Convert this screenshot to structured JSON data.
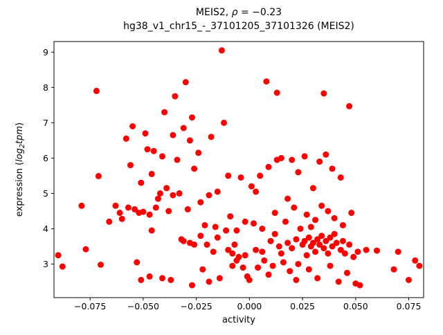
{
  "figure": {
    "title1": {
      "prefix": "MEIS2, ",
      "rho": "ρ",
      "suffix": " = −0.23"
    },
    "title2": "hg38_v1_chr15_-_37101205_37101326 (MEIS2)",
    "xlabel": "activity",
    "ylabel": {
      "prefix": "expression (",
      "log": "log",
      "sub": "2",
      "var": "tpm",
      "suffix": ")"
    }
  },
  "chart_data": {
    "type": "scatter",
    "title": "MEIS2, ρ = −0.23",
    "subtitle": "hg38_v1_chr15_-_37101205_37101326 (MEIS2)",
    "xlabel": "activity",
    "ylabel": "expression (log2 tpm)",
    "legend": null,
    "grid": false,
    "marker_color": "#ff0000",
    "marker_radius": 4.5,
    "xlim": [
      -0.092,
      0.082
    ],
    "ylim": [
      2.05,
      9.3
    ],
    "xticks": [
      -0.075,
      -0.05,
      -0.025,
      0.0,
      0.025,
      0.05,
      0.075
    ],
    "xtick_labels": [
      "−0.075",
      "−0.050",
      "−0.025",
      "0.000",
      "0.025",
      "0.050",
      "0.075"
    ],
    "yticks": [
      3,
      4,
      5,
      6,
      7,
      8,
      9
    ],
    "ytick_labels": [
      "3",
      "4",
      "5",
      "6",
      "7",
      "8",
      "9"
    ],
    "points": [
      [
        -0.09,
        3.25
      ],
      [
        -0.088,
        2.93
      ],
      [
        -0.079,
        4.65
      ],
      [
        -0.077,
        3.42
      ],
      [
        -0.072,
        7.9
      ],
      [
        -0.071,
        5.49
      ],
      [
        -0.07,
        2.98
      ],
      [
        -0.066,
        4.2
      ],
      [
        -0.063,
        4.65
      ],
      [
        -0.061,
        4.45
      ],
      [
        -0.06,
        4.28
      ],
      [
        -0.058,
        6.55
      ],
      [
        -0.057,
        4.6
      ],
      [
        -0.056,
        5.8
      ],
      [
        -0.055,
        6.9
      ],
      [
        -0.054,
        4.55
      ],
      [
        -0.053,
        3.05
      ],
      [
        -0.052,
        4.45
      ],
      [
        -0.051,
        5.3
      ],
      [
        -0.051,
        2.55
      ],
      [
        -0.05,
        4.48
      ],
      [
        -0.049,
        6.7
      ],
      [
        -0.048,
        6.25
      ],
      [
        -0.047,
        4.4
      ],
      [
        -0.047,
        2.65
      ],
      [
        -0.046,
        5.55
      ],
      [
        -0.046,
        3.95
      ],
      [
        -0.045,
        6.2
      ],
      [
        -0.044,
        4.6
      ],
      [
        -0.043,
        4.85
      ],
      [
        -0.042,
        5.0
      ],
      [
        -0.041,
        6.05
      ],
      [
        -0.041,
        2.6
      ],
      [
        -0.04,
        7.3
      ],
      [
        -0.039,
        5.15
      ],
      [
        -0.038,
        4.5
      ],
      [
        -0.037,
        2.55
      ],
      [
        -0.036,
        6.65
      ],
      [
        -0.036,
        4.95
      ],
      [
        -0.035,
        7.75
      ],
      [
        -0.034,
        5.95
      ],
      [
        -0.033,
        5.0
      ],
      [
        -0.032,
        3.7
      ],
      [
        -0.031,
        6.85
      ],
      [
        -0.031,
        3.65
      ],
      [
        -0.03,
        8.15
      ],
      [
        -0.029,
        4.55
      ],
      [
        -0.028,
        6.5
      ],
      [
        -0.028,
        3.6
      ],
      [
        -0.027,
        7.15
      ],
      [
        -0.027,
        2.4
      ],
      [
        -0.026,
        5.7
      ],
      [
        -0.026,
        3.55
      ],
      [
        -0.024,
        6.15
      ],
      [
        -0.023,
        4.75
      ],
      [
        -0.023,
        3.8
      ],
      [
        -0.022,
        2.85
      ],
      [
        -0.021,
        4.1
      ],
      [
        -0.02,
        3.55
      ],
      [
        -0.019,
        4.95
      ],
      [
        -0.019,
        2.5
      ],
      [
        -0.018,
        6.6
      ],
      [
        -0.017,
        3.35
      ],
      [
        -0.016,
        4.05
      ],
      [
        -0.015,
        5.05
      ],
      [
        -0.015,
        3.75
      ],
      [
        -0.014,
        2.6
      ],
      [
        -0.013,
        9.05
      ],
      [
        -0.012,
        7.0
      ],
      [
        -0.011,
        3.95
      ],
      [
        -0.01,
        5.5
      ],
      [
        -0.01,
        3.4
      ],
      [
        -0.009,
        4.35
      ],
      [
        -0.008,
        3.3
      ],
      [
        -0.008,
        2.95
      ],
      [
        -0.007,
        3.55
      ],
      [
        -0.006,
        3.95
      ],
      [
        -0.006,
        3.1
      ],
      [
        -0.005,
        3.2
      ],
      [
        -0.004,
        5.45
      ],
      [
        -0.003,
        2.9
      ],
      [
        -0.002,
        4.2
      ],
      [
        -0.002,
        3.25
      ],
      [
        -0.001,
        2.65
      ],
      [
        0.0,
        2.55
      ],
      [
        0.001,
        5.2
      ],
      [
        0.002,
        4.15
      ],
      [
        0.003,
        5.05
      ],
      [
        0.003,
        3.4
      ],
      [
        0.004,
        2.9
      ],
      [
        0.005,
        5.5
      ],
      [
        0.006,
        4.0
      ],
      [
        0.006,
        3.35
      ],
      [
        0.007,
        3.1
      ],
      [
        0.008,
        8.17
      ],
      [
        0.009,
        5.75
      ],
      [
        0.009,
        2.7
      ],
      [
        0.01,
        3.65
      ],
      [
        0.011,
        2.95
      ],
      [
        0.012,
        4.45
      ],
      [
        0.012,
        3.85
      ],
      [
        0.013,
        7.85
      ],
      [
        0.013,
        5.95
      ],
      [
        0.014,
        3.5
      ],
      [
        0.015,
        6.0
      ],
      [
        0.015,
        3.3
      ],
      [
        0.016,
        3.05
      ],
      [
        0.017,
        4.2
      ],
      [
        0.018,
        4.85
      ],
      [
        0.018,
        3.6
      ],
      [
        0.019,
        2.8
      ],
      [
        0.02,
        5.95
      ],
      [
        0.02,
        3.45
      ],
      [
        0.021,
        4.6
      ],
      [
        0.022,
        3.7
      ],
      [
        0.022,
        2.55
      ],
      [
        0.023,
        5.6
      ],
      [
        0.023,
        3.0
      ],
      [
        0.024,
        4.0
      ],
      [
        0.025,
        3.55
      ],
      [
        0.026,
        6.05
      ],
      [
        0.026,
        3.65
      ],
      [
        0.027,
        4.4
      ],
      [
        0.027,
        3.25
      ],
      [
        0.028,
        3.75
      ],
      [
        0.028,
        2.85
      ],
      [
        0.029,
        4.05
      ],
      [
        0.029,
        3.5
      ],
      [
        0.03,
        5.15
      ],
      [
        0.03,
        3.6
      ],
      [
        0.031,
        4.25
      ],
      [
        0.031,
        3.35
      ],
      [
        0.032,
        3.7
      ],
      [
        0.032,
        2.6
      ],
      [
        0.033,
        5.9
      ],
      [
        0.033,
        3.55
      ],
      [
        0.034,
        4.65
      ],
      [
        0.034,
        3.8
      ],
      [
        0.035,
        7.83
      ],
      [
        0.035,
        3.45
      ],
      [
        0.036,
        6.1
      ],
      [
        0.036,
        3.65
      ],
      [
        0.037,
        4.5
      ],
      [
        0.037,
        3.3
      ],
      [
        0.038,
        3.75
      ],
      [
        0.038,
        2.95
      ],
      [
        0.039,
        5.7
      ],
      [
        0.039,
        3.5
      ],
      [
        0.04,
        4.3
      ],
      [
        0.04,
        3.85
      ],
      [
        0.041,
        3.6
      ],
      [
        0.042,
        2.5
      ],
      [
        0.043,
        5.45
      ],
      [
        0.043,
        3.4
      ],
      [
        0.044,
        4.1
      ],
      [
        0.044,
        3.65
      ],
      [
        0.045,
        3.3
      ],
      [
        0.046,
        2.75
      ],
      [
        0.047,
        7.47
      ],
      [
        0.047,
        3.55
      ],
      [
        0.048,
        4.45
      ],
      [
        0.049,
        3.2
      ],
      [
        0.05,
        2.45
      ],
      [
        0.051,
        3.35
      ],
      [
        0.052,
        2.4
      ],
      [
        0.055,
        3.4
      ],
      [
        0.06,
        3.38
      ],
      [
        0.068,
        2.85
      ],
      [
        0.07,
        3.35
      ],
      [
        0.075,
        2.55
      ],
      [
        0.078,
        3.1
      ],
      [
        0.08,
        2.95
      ]
    ]
  }
}
